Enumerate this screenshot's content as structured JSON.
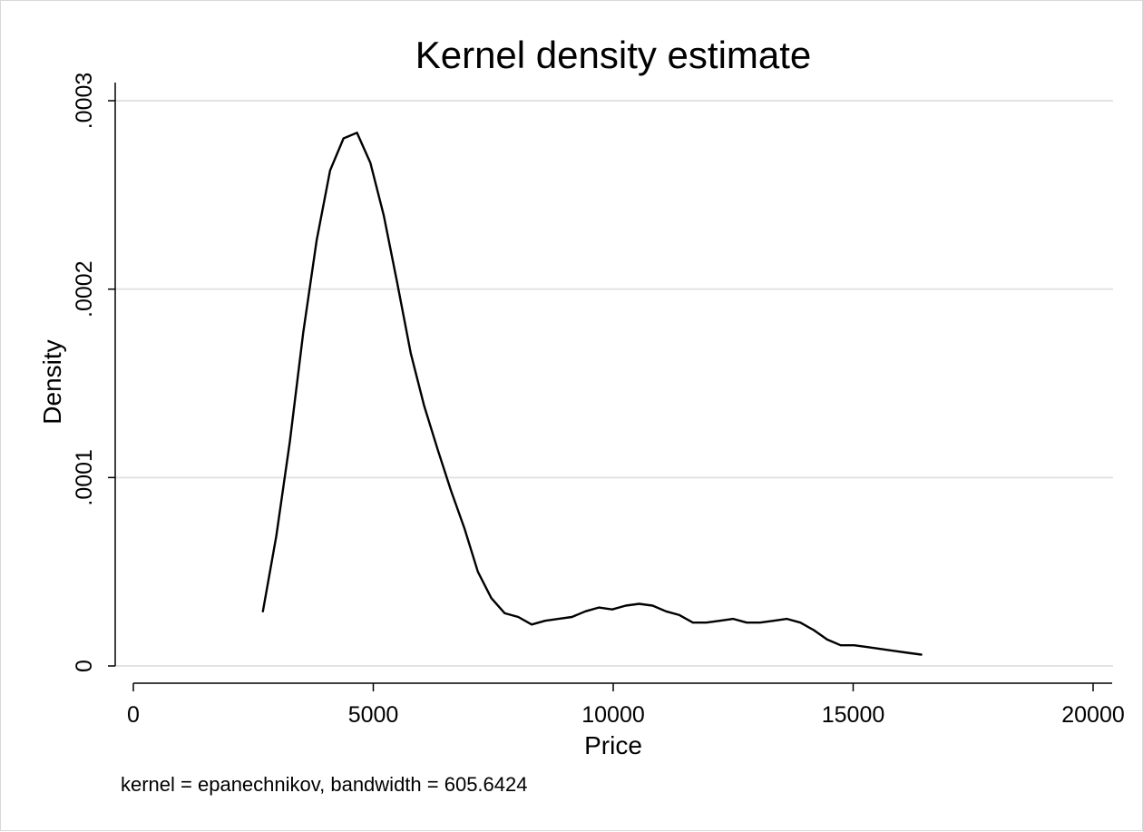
{
  "chart_data": {
    "type": "line",
    "title": "Kernel density estimate",
    "xlabel": "Price",
    "ylabel": "Density",
    "note": "kernel = epanechnikov, bandwidth = 605.6424",
    "xlim": [
      0,
      20000
    ],
    "ylim": [
      0,
      0.0003
    ],
    "x_ticks": [
      {
        "value": 0,
        "label": "0"
      },
      {
        "value": 5000,
        "label": "5000"
      },
      {
        "value": 10000,
        "label": "10000"
      },
      {
        "value": 15000,
        "label": "15000"
      },
      {
        "value": 20000,
        "label": "20000"
      }
    ],
    "y_ticks": [
      {
        "value": 0,
        "label": "0"
      },
      {
        "value": 0.0001,
        "label": ".0001"
      },
      {
        "value": 0.0002,
        "label": ".0002"
      },
      {
        "value": 0.0003,
        "label": ".0003"
      }
    ],
    "grid": true,
    "series": [
      {
        "x": [
          2700,
          2980,
          3260,
          3540,
          3820,
          4100,
          4380,
          4660,
          4940,
          5220,
          5500,
          5780,
          6060,
          6340,
          6620,
          6900,
          7180,
          7460,
          7740,
          8020,
          8300,
          8580,
          8860,
          9140,
          9420,
          9700,
          9980,
          10260,
          10540,
          10820,
          11100,
          11380,
          11660,
          11940,
          12220,
          12500,
          12780,
          13060,
          13340,
          13620,
          13900,
          14180,
          14460,
          14740,
          15020,
          15300,
          15580,
          15860,
          16140,
          16420
        ],
        "y": [
          2.9e-05,
          6.9e-05,
          0.000119,
          0.000177,
          0.000226,
          0.000263,
          0.00028,
          0.000283,
          0.000267,
          0.000239,
          0.000203,
          0.000166,
          0.000138,
          0.000115,
          9.3e-05,
          7.3e-05,
          5e-05,
          3.6e-05,
          2.8e-05,
          2.6e-05,
          2.2e-05,
          2.4e-05,
          2.5e-05,
          2.6e-05,
          2.9e-05,
          3.1e-05,
          3e-05,
          3.2e-05,
          3.3e-05,
          3.2e-05,
          2.9e-05,
          2.7e-05,
          2.3e-05,
          2.3e-05,
          2.4e-05,
          2.5e-05,
          2.3e-05,
          2.3e-05,
          2.4e-05,
          2.5e-05,
          2.3e-05,
          1.9e-05,
          1.4e-05,
          1.1e-05,
          1.1e-05,
          1e-05,
          9e-06,
          8e-06,
          7e-06,
          6e-06
        ],
        "color": "#000000"
      }
    ],
    "colors": {
      "grid": "#e3e3e3",
      "axis": "#000000",
      "line": "#000000"
    }
  }
}
